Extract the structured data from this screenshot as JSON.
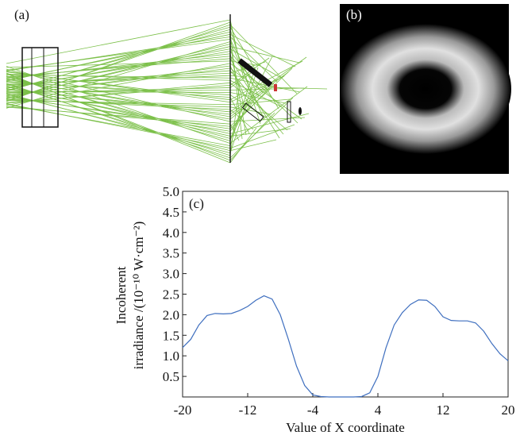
{
  "panels": {
    "a": "(a)",
    "b": "(b)"
  },
  "chart_data": {
    "type": "line",
    "annotation": "(c)",
    "x_label": "Value of X coordinate",
    "y_label": [
      "Incoherent",
      "irradiance /(10⁻¹⁰ W·cm⁻²)"
    ],
    "x": [
      -20,
      -19,
      -18,
      -17,
      -16,
      -15,
      -14,
      -13,
      -12,
      -11,
      -10,
      -9,
      -8,
      -7,
      -6,
      -5,
      -4,
      -3,
      -2,
      -1,
      0,
      1,
      2,
      3,
      4,
      5,
      6,
      7,
      8,
      9,
      10,
      11,
      12,
      13,
      14,
      15,
      16,
      17,
      18,
      19,
      20
    ],
    "series": [
      {
        "color": "#3f6fbf",
        "values": [
          1.2,
          1.4,
          1.75,
          1.98,
          2.03,
          2.02,
          2.03,
          2.1,
          2.2,
          2.35,
          2.46,
          2.38,
          2.0,
          1.4,
          0.75,
          0.28,
          0.05,
          0.01,
          0,
          0,
          0,
          0,
          0.01,
          0.1,
          0.5,
          1.2,
          1.75,
          2.05,
          2.25,
          2.36,
          2.35,
          2.2,
          1.95,
          1.86,
          1.85,
          1.85,
          1.8,
          1.6,
          1.3,
          1.05,
          0.88
        ]
      }
    ],
    "xlim": [
      -20,
      20
    ],
    "xticks": [
      -20,
      -12,
      -4,
      4,
      12,
      20
    ],
    "ylim": [
      0,
      5
    ],
    "yticks": [
      0.5,
      {
        "value": 1,
        "label": "1.0"
      },
      1.5,
      {
        "value": 2,
        "label": "2.0"
      },
      2.5,
      {
        "value": 3,
        "label": "3.0"
      },
      3.5,
      {
        "value": 4,
        "label": "4.0"
      },
      4.5,
      {
        "value": 5,
        "label": "5.0"
      }
    ]
  }
}
